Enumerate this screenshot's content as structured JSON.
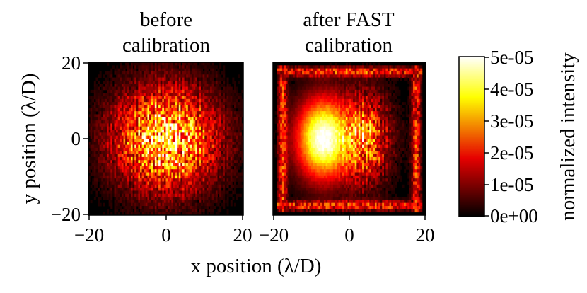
{
  "chart_data": [
    {
      "type": "heatmap",
      "title_lines": [
        "before",
        "calibration"
      ],
      "xlim": [
        -20,
        20
      ],
      "ylim": [
        -20,
        20
      ],
      "xticks": [
        "−20",
        "0",
        "20"
      ],
      "yticks": [
        "20",
        "0",
        "−20"
      ],
      "xlabel": "x position (λ/D)",
      "ylabel": "y position (λ/D)",
      "pattern": "speckle halo centered near (0, 0), radius ~12 λ/D, peak near the color-scale maximum"
    },
    {
      "type": "heatmap",
      "title_lines": [
        "after FAST",
        "calibration"
      ],
      "xlim": [
        -20,
        20
      ],
      "ylim": [
        -20,
        20
      ],
      "xticks": [
        "−20",
        "0",
        "20"
      ],
      "yticks": [],
      "pattern": "dark hole with bright smooth lobe on left side near x ≈ -7 λ/D, residual speckles at x ≈ +4 λ/D, outer ring near ±18 λ/D"
    }
  ],
  "colorbar": {
    "colormap": "hot",
    "min": 0,
    "max": 5e-05,
    "tick_labels": [
      "5e-05",
      "4e-05",
      "3e-05",
      "2e-05",
      "1e-05",
      "0e+00"
    ],
    "label": "normalized intensity"
  },
  "shared_xlabel": "x position (λ/D)",
  "colors": {
    "low": "#000000",
    "mid": "#e60000",
    "high": "#ffff00",
    "peak": "#ffffff"
  }
}
